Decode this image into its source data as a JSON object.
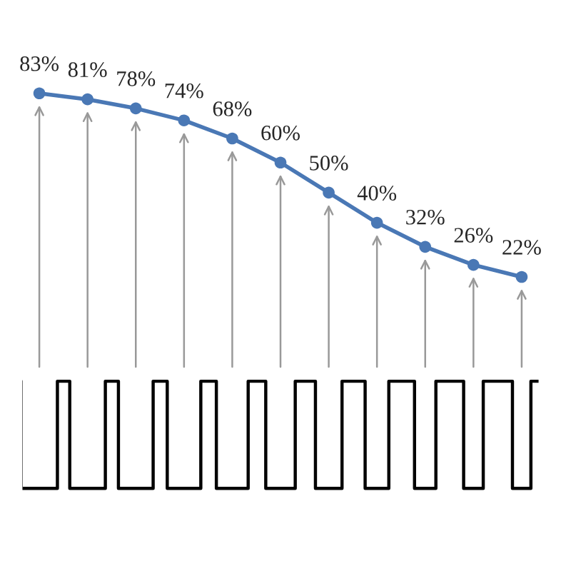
{
  "chart_data": {
    "type": "line",
    "categories": [
      null,
      null,
      null,
      null,
      null,
      null,
      null,
      null,
      null,
      null,
      null
    ],
    "series": [
      {
        "color": "#4a78b5",
        "values": [
          83,
          81,
          78,
          74,
          68,
          60,
          50,
          40,
          32,
          26,
          22
        ],
        "value_labels": [
          "83%",
          "81%",
          "78%",
          "74%",
          "68%",
          "60%",
          "50%",
          "40%",
          "32%",
          "26%",
          "22%"
        ]
      }
    ],
    "marker": "circle",
    "line_style": "solid",
    "grid": false
  }
}
